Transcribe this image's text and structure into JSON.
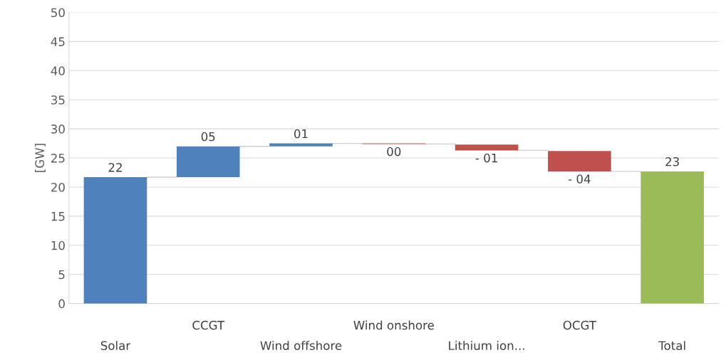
{
  "chart_data": {
    "type": "bar",
    "categories": [
      "Solar",
      "CCGT",
      "Wind offshore",
      "Wind onshore",
      "Lithium ion...",
      "OCGT",
      "Total"
    ],
    "values": [
      21.7,
      5.3,
      0.5,
      -0.1,
      -1.0,
      -3.5,
      22.7
    ],
    "base": [
      0,
      21.7,
      27.0,
      27.5,
      27.3,
      26.2,
      0
    ],
    "colors": [
      "#4f81bd",
      "#4f81bd",
      "#4f81bd",
      "#c0504d",
      "#c0504d",
      "#c0504d",
      "#9bbb59"
    ],
    "value_labels": [
      "22",
      "05",
      "01",
      "00",
      "- 01",
      "- 04",
      "23"
    ],
    "ylabel": "[GW]",
    "ylim": [
      0,
      50
    ],
    "yticks": [
      0,
      5,
      10,
      15,
      20,
      25,
      30,
      35,
      40,
      45,
      50
    ],
    "grid": "y",
    "legend": false
  }
}
